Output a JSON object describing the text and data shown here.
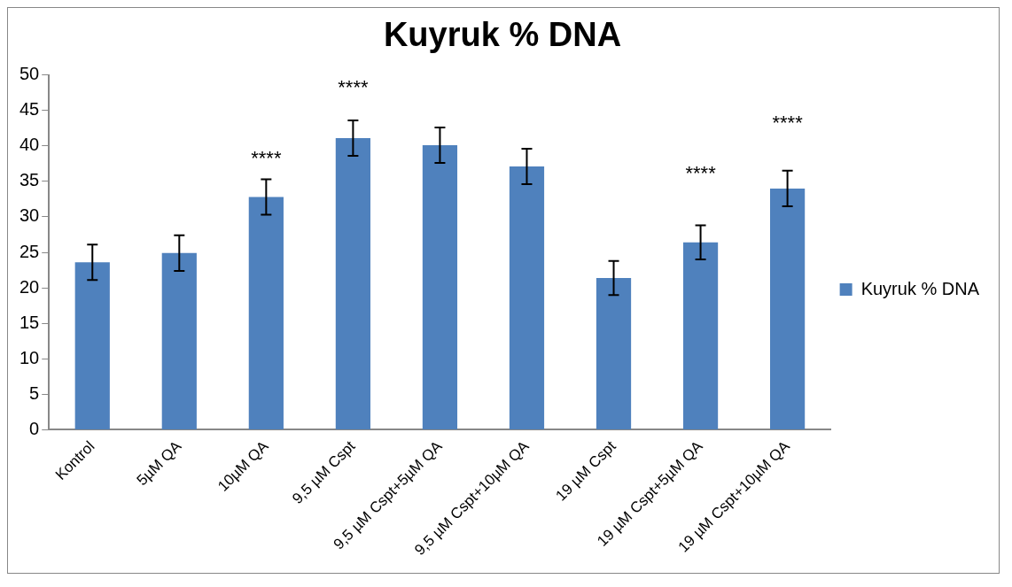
{
  "chart_data": {
    "type": "bar",
    "title": "Kuyruk % DNA",
    "categories": [
      "Kontrol",
      "5µM QA",
      "10µM QA",
      "9,5 µM Cspt",
      "9,5 µM Cspt+5µM QA",
      "9,5 µM Cspt+10µM QA",
      "19 µM Cspt",
      "19 µM Cspt+5µM QA",
      "19 µM Cspt+10µM QA"
    ],
    "series": [
      {
        "name": "Kuyruk % DNA",
        "color": "#4f81bd",
        "values": [
          23.6,
          24.9,
          32.8,
          41.1,
          40.1,
          37.1,
          21.4,
          26.4,
          34.0
        ],
        "errors": [
          2.5,
          2.5,
          2.5,
          2.5,
          2.5,
          2.5,
          2.4,
          2.4,
          2.5
        ]
      }
    ],
    "ylim": [
      0,
      50
    ],
    "yticks": [
      0,
      5,
      10,
      15,
      20,
      25,
      30,
      35,
      40,
      45,
      50
    ],
    "grid": false,
    "legend": "right",
    "annotations": [
      "****",
      "****",
      "****",
      "****"
    ]
  }
}
